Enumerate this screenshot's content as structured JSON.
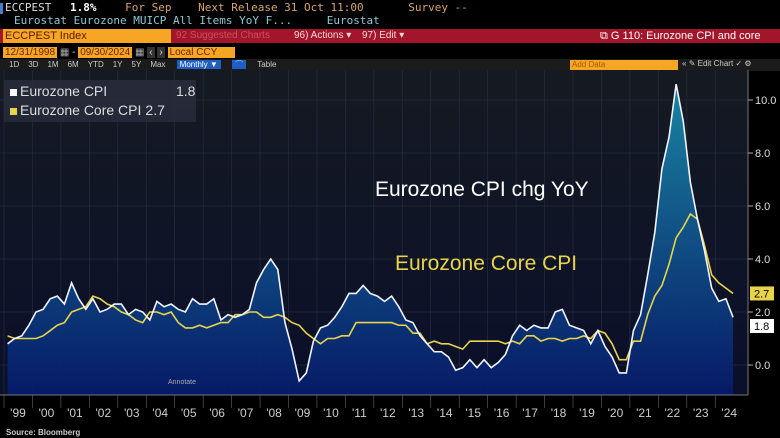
{
  "header": {
    "ticker": "ECCPEST",
    "value": "1.8%",
    "for": "For Sep",
    "next_release": "Next Release 31 Oct 11:00",
    "survey": "Survey --",
    "description": "Eurostat Eurozone MUICP All Items YoY F...",
    "source_name": "Eurostat"
  },
  "toolbar": {
    "index": "ECCPEST Index",
    "suggested": "92 Suggested Charts",
    "actions": "96) Actions ▾",
    "edit": "97) Edit ▾",
    "chart_title": "G 110: Eurozone CPI and core"
  },
  "range": {
    "start": "12/31/1998",
    "end": "09/30/2024",
    "currency": "Local CCY"
  },
  "periods": [
    "1D",
    "3D",
    "1M",
    "6M",
    "YTD",
    "1Y",
    "5Y",
    "Max"
  ],
  "frequency": "Monthly ▼",
  "table_label": "Table",
  "add_data": "Add Data",
  "edit_chart": "✎ Edit Chart",
  "annotate": "Annotate",
  "source": "Source: Bloomberg",
  "colors": {
    "headline": "#ffffff",
    "core": "#e8d44a",
    "fill_top": "#1a8aa8",
    "fill_bottom": "#061a6a",
    "toolbar_red": "#a3152a",
    "orange": "#f6a624"
  },
  "chart_data": {
    "type": "line",
    "title": "",
    "annotations": [
      "Eurozone CPI chg YoY",
      "Eurozone Core CPI"
    ],
    "legend_position": "top-left",
    "y_axis": {
      "side": "right",
      "ylim": [
        -0.8,
        11
      ],
      "ticks": [
        "0.0",
        "2.0",
        "4.0",
        "6.0",
        "8.0",
        "10.0"
      ]
    },
    "x_tick_labels": [
      "'99",
      "'00",
      "'01",
      "'02",
      "'03",
      "'04",
      "'05",
      "'06",
      "'07",
      "'08",
      "'09",
      "'10",
      "'11",
      "'12",
      "'13",
      "'14",
      "'15",
      "'16",
      "'17",
      "'18",
      "'19",
      "'20",
      "'21",
      "'22",
      "'23",
      "'24"
    ],
    "x_start_year": 1999,
    "frequency": "quarterly",
    "series": [
      {
        "name": "Eurozone CPI",
        "last": "1.8",
        "values": [
          0.8,
          1.0,
          1.1,
          1.5,
          2.0,
          2.1,
          2.5,
          2.6,
          2.3,
          3.1,
          2.5,
          2.1,
          2.5,
          2.0,
          2.1,
          2.3,
          2.3,
          1.9,
          2.1,
          2.0,
          1.7,
          2.4,
          2.2,
          2.3,
          2.1,
          2.0,
          2.5,
          2.3,
          2.3,
          2.5,
          1.7,
          1.9,
          1.8,
          1.9,
          2.1,
          3.1,
          3.6,
          4.0,
          3.6,
          1.6,
          0.6,
          -0.6,
          -0.3,
          0.9,
          1.4,
          1.5,
          1.8,
          2.2,
          2.7,
          2.7,
          3.0,
          2.7,
          2.6,
          2.4,
          2.6,
          2.2,
          1.7,
          1.6,
          1.1,
          0.8,
          0.5,
          0.5,
          0.3,
          -0.2,
          -0.1,
          0.2,
          -0.1,
          0.2,
          -0.1,
          0.1,
          0.4,
          1.1,
          1.5,
          1.3,
          1.5,
          1.4,
          1.4,
          2.0,
          2.1,
          1.5,
          1.4,
          1.3,
          0.8,
          1.3,
          0.7,
          0.3,
          -0.3,
          -0.3,
          1.3,
          1.9,
          3.4,
          5.0,
          7.4,
          8.6,
          10.6,
          9.2,
          6.9,
          5.5,
          4.3,
          2.9,
          2.4,
          2.5,
          1.8
        ]
      },
      {
        "name": "Eurozone Core CPI",
        "last": "2.7",
        "values": [
          1.1,
          1.0,
          1.0,
          1.0,
          1.0,
          1.1,
          1.3,
          1.5,
          1.6,
          2.0,
          2.1,
          2.2,
          2.6,
          2.5,
          2.3,
          2.2,
          2.0,
          1.9,
          1.7,
          1.6,
          2.0,
          2.0,
          1.9,
          2.0,
          1.6,
          1.4,
          1.4,
          1.5,
          1.4,
          1.5,
          1.6,
          1.6,
          1.9,
          1.9,
          2.0,
          2.0,
          1.8,
          1.8,
          1.9,
          1.8,
          1.6,
          1.5,
          1.2,
          1.0,
          0.8,
          1.0,
          1.0,
          1.1,
          1.1,
          1.6,
          1.6,
          1.6,
          1.6,
          1.6,
          1.6,
          1.5,
          1.5,
          1.2,
          1.2,
          0.8,
          0.9,
          0.8,
          0.8,
          0.7,
          0.6,
          0.9,
          0.9,
          0.9,
          0.9,
          0.9,
          0.8,
          0.9,
          0.8,
          1.1,
          1.1,
          0.9,
          1.0,
          1.0,
          0.9,
          1.0,
          1.0,
          1.1,
          1.0,
          1.3,
          1.2,
          0.8,
          0.2,
          0.2,
          0.9,
          0.9,
          1.9,
          2.6,
          3.0,
          3.8,
          4.8,
          5.2,
          5.7,
          5.5,
          4.5,
          3.4,
          3.1,
          2.9,
          2.7
        ]
      }
    ]
  }
}
